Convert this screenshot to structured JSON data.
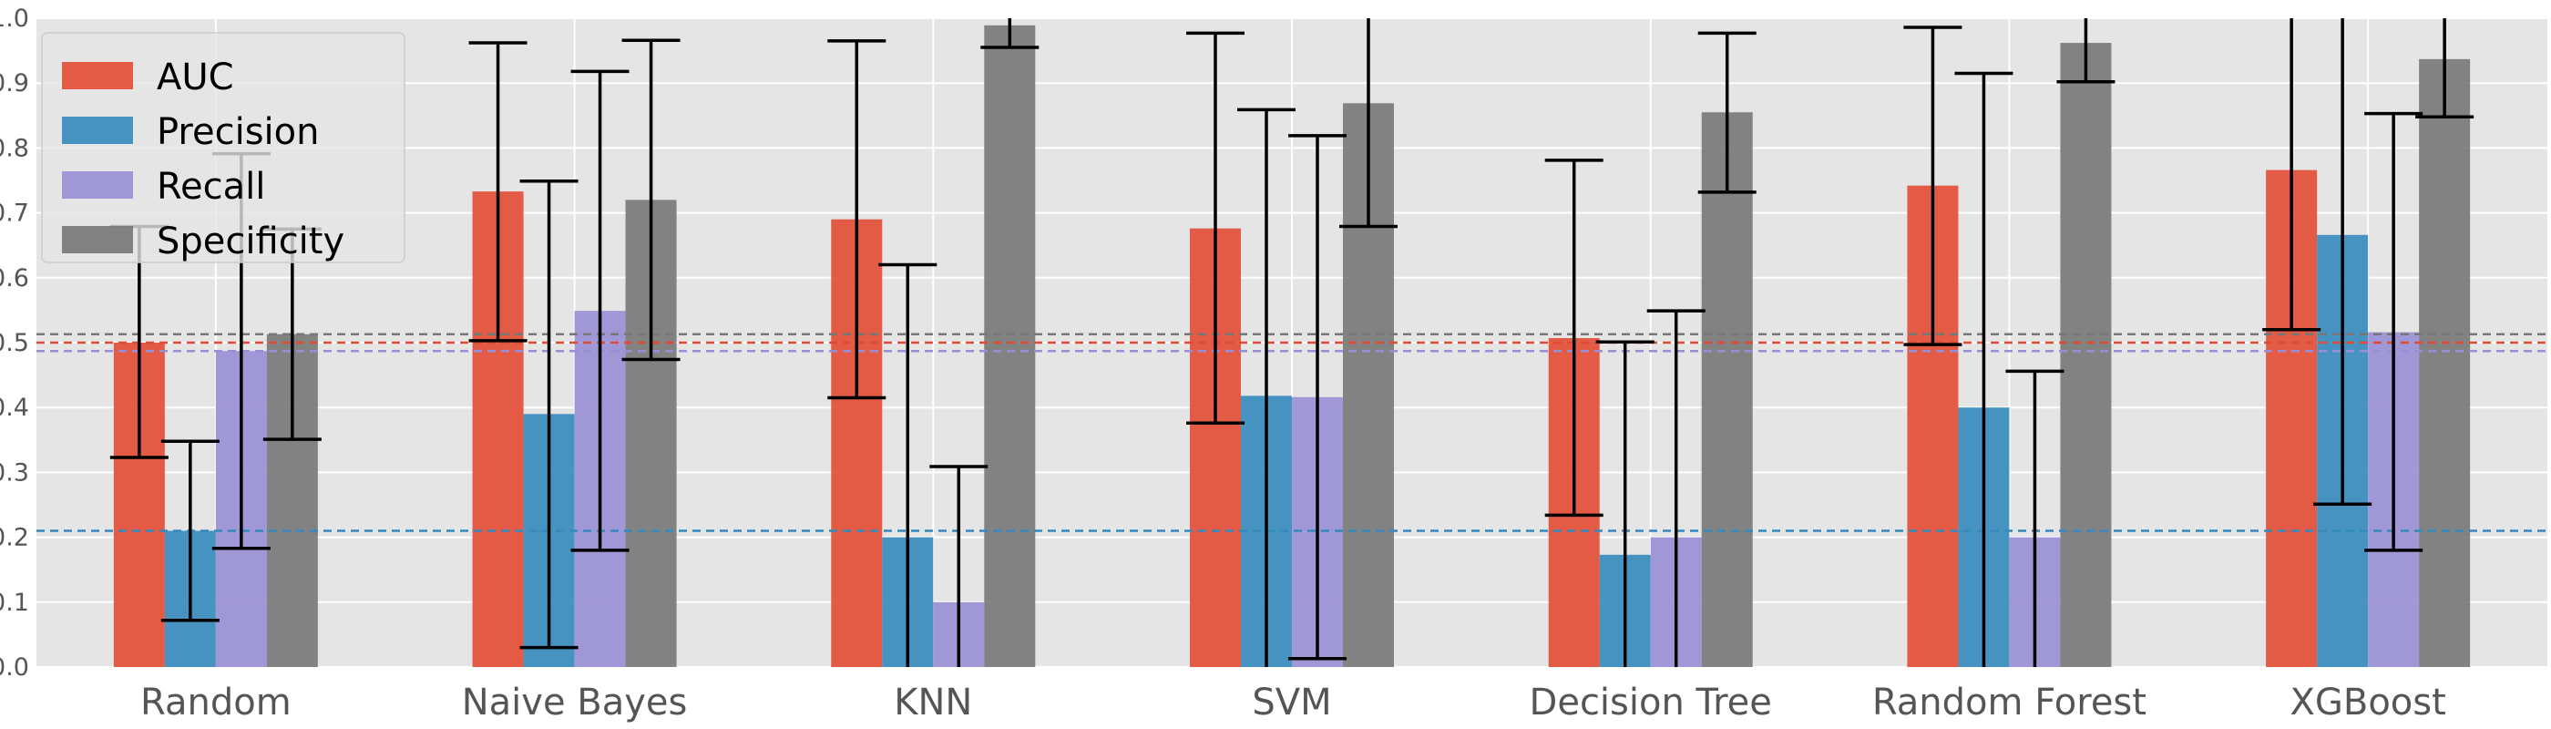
{
  "chart_data": {
    "type": "bar",
    "title": "",
    "xlabel": "",
    "ylabel": "",
    "ylim": [
      0,
      1.0
    ],
    "yticks": [
      "0.0",
      "0.1",
      "0.2",
      "0.3",
      "0.4",
      "0.5",
      "0.6",
      "0.7",
      "0.8",
      "0.9",
      "1.0"
    ],
    "grid": true,
    "legend_position": "top-left",
    "categories": [
      "Random",
      "Naive Bayes",
      "KNN",
      "SVM",
      "Decision Tree",
      "Random Forest",
      "XGBoost"
    ],
    "series": [
      {
        "name": "AUC",
        "color": "#E24A33",
        "values": [
          0.5,
          0.733,
          0.69,
          0.676,
          0.507,
          0.742,
          0.766
        ],
        "error_low": [
          0.323,
          0.503,
          0.415,
          0.376,
          0.234,
          0.497,
          0.52
        ],
        "error_high": [
          0.679,
          0.962,
          0.965,
          0.977,
          0.781,
          0.986,
          1.01
        ]
      },
      {
        "name": "Precision",
        "color": "#348ABD",
        "values": [
          0.21,
          0.39,
          0.2,
          0.418,
          0.173,
          0.4,
          0.666
        ],
        "error_low": [
          0.072,
          0.03,
          0.0,
          0.0,
          0.0,
          0.0,
          0.251
        ],
        "error_high": [
          0.348,
          0.749,
          0.62,
          0.859,
          0.501,
          0.915,
          1.08
        ]
      },
      {
        "name": "Recall",
        "color": "#988ED5",
        "values": [
          0.487,
          0.549,
          0.1,
          0.416,
          0.2,
          0.2,
          0.516
        ],
        "error_low": [
          0.183,
          0.18,
          0.0,
          0.013,
          0.0,
          0.0,
          0.18
        ],
        "error_high": [
          0.791,
          0.918,
          0.309,
          0.819,
          0.549,
          0.456,
          0.853
        ]
      },
      {
        "name": "Specificity",
        "color": "#777777",
        "values": [
          0.513,
          0.72,
          0.989,
          0.869,
          0.855,
          0.962,
          0.937
        ],
        "error_low": [
          0.351,
          0.474,
          0.955,
          0.679,
          0.732,
          0.902,
          0.848
        ],
        "error_high": [
          0.675,
          0.966,
          1.02,
          1.06,
          0.977,
          1.02,
          1.03
        ]
      }
    ],
    "reference_lines": [
      {
        "series": "AUC",
        "value": 0.5,
        "color": "#E24A33"
      },
      {
        "series": "Precision",
        "value": 0.21,
        "color": "#348ABD"
      },
      {
        "series": "Recall",
        "value": 0.487,
        "color": "#988ED5"
      },
      {
        "series": "Specificity",
        "value": 0.513,
        "color": "#777777"
      }
    ]
  }
}
